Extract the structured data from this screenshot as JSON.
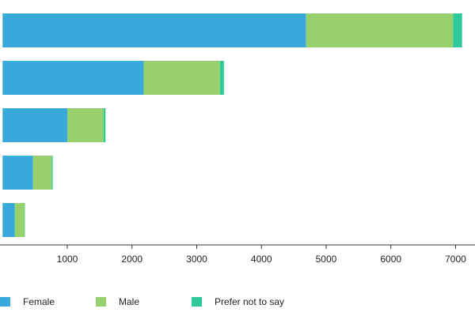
{
  "chart_data": {
    "type": "bar",
    "orientation": "horizontal",
    "stacked": true,
    "title": "",
    "xlabel": "",
    "ylabel": "",
    "categories": [
      "",
      "",
      "",
      "",
      ""
    ],
    "xlim": [
      -40,
      7300
    ],
    "x_ticks": [
      1000,
      2000,
      3000,
      4000,
      5000,
      6000,
      7000
    ],
    "x_tick_labels": [
      "1000",
      "2000",
      "3000",
      "4000",
      "5000",
      "6000",
      "7000"
    ],
    "grid": false,
    "legend_position": "bottom",
    "series": [
      {
        "name": "Female",
        "color": "#39a9db",
        "values": [
          4690,
          2180,
          1000,
          470,
          190
        ]
      },
      {
        "name": "Male",
        "color": "#96d16d",
        "values": [
          2270,
          1180,
          560,
          290,
          150
        ]
      },
      {
        "name": "Prefer not to say",
        "color": "#2ec99b",
        "values": [
          140,
          60,
          30,
          15,
          5
        ]
      }
    ]
  }
}
